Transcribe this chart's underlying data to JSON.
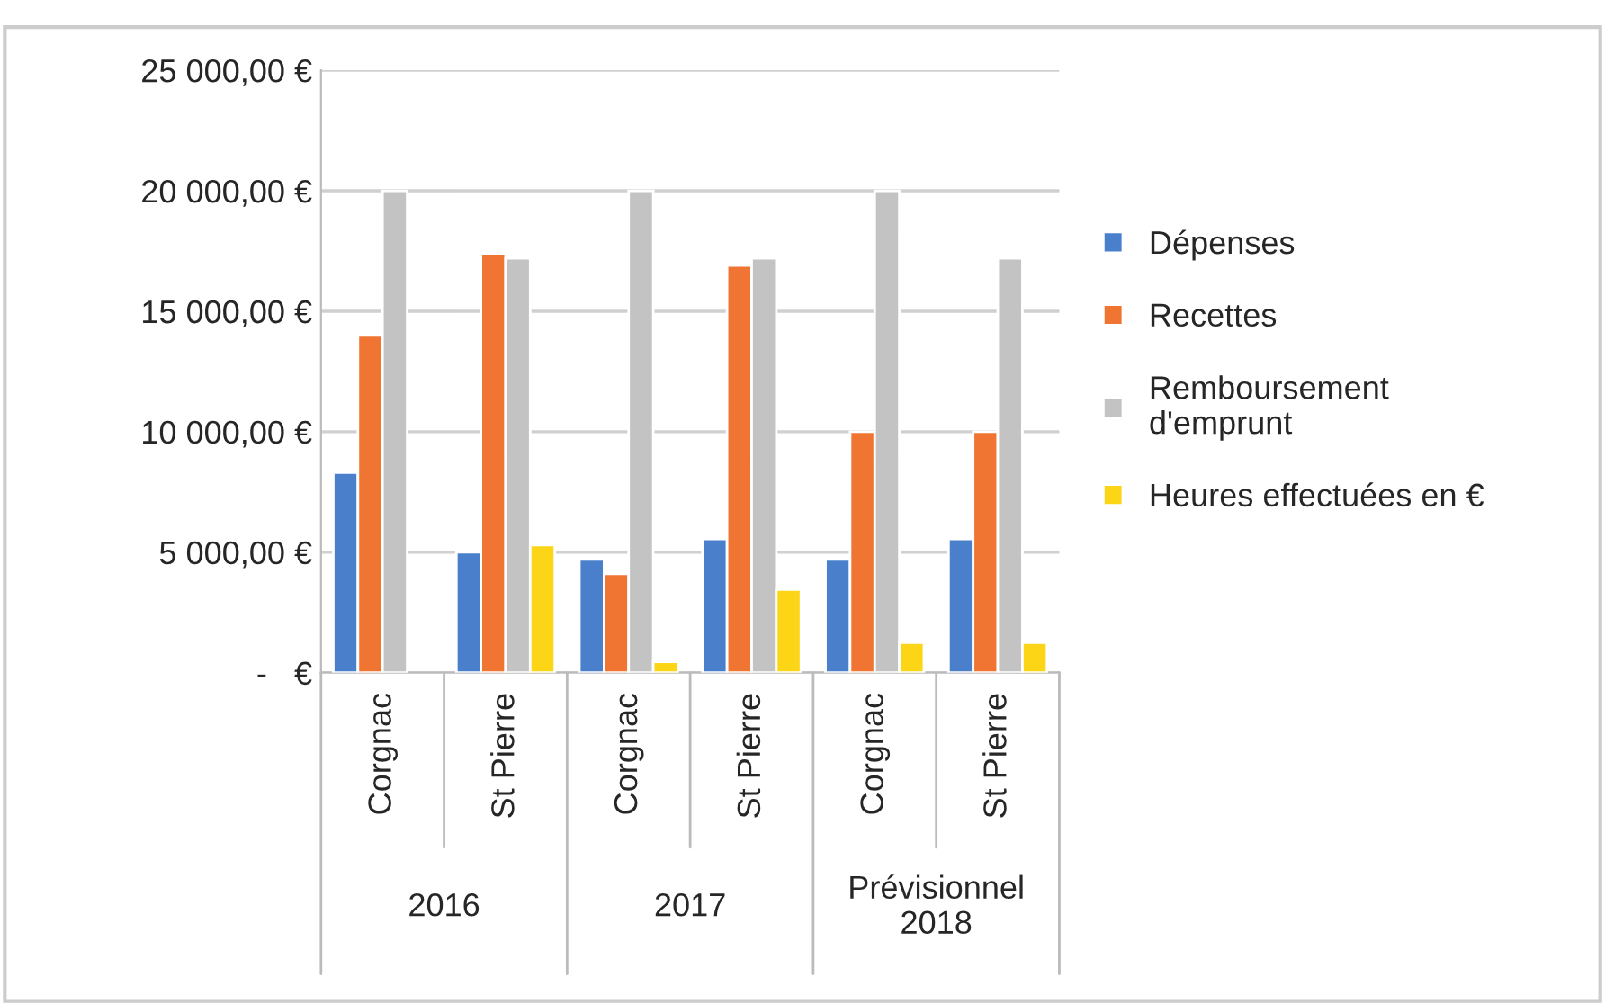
{
  "chart_data": {
    "type": "bar",
    "categories": [
      "Corgnac",
      "St Pierre",
      "Corgnac",
      "St Pierre",
      "Corgnac",
      "St Pierre"
    ],
    "series": [
      {
        "name": "Dépenses",
        "color": "#4a7fcb",
        "values": [
          8300,
          5000,
          4700,
          5550,
          4700,
          5550
        ]
      },
      {
        "name": "Recettes",
        "color": "#f07533",
        "values": [
          14000,
          17400,
          4100,
          16900,
          10000,
          10000
        ]
      },
      {
        "name": "Remboursement\nd'emprunt",
        "color": "#c3c3c3",
        "values": [
          20000,
          17200,
          20000,
          17200,
          20000,
          17200
        ]
      },
      {
        "name": "Heures effectuées en €",
        "color": "#fdd517",
        "values": [
          null,
          5300,
          450,
          3450,
          1250,
          1250
        ]
      }
    ],
    "ylim": [
      0,
      25000
    ],
    "yticks": [
      {
        "value": 0,
        "label": "-   €"
      },
      {
        "value": 5000,
        "label": "5 000,00 €"
      },
      {
        "value": 10000,
        "label": "10 000,00 €"
      },
      {
        "value": 15000,
        "label": "15 000,00 €"
      },
      {
        "value": 20000,
        "label": "20 000,00 €"
      },
      {
        "value": 25000,
        "label": "25 000,00 €"
      }
    ],
    "annotations": [
      "2016",
      "2017",
      "Prévisionnel\n2018"
    ],
    "grid": "y",
    "legend": "right"
  }
}
